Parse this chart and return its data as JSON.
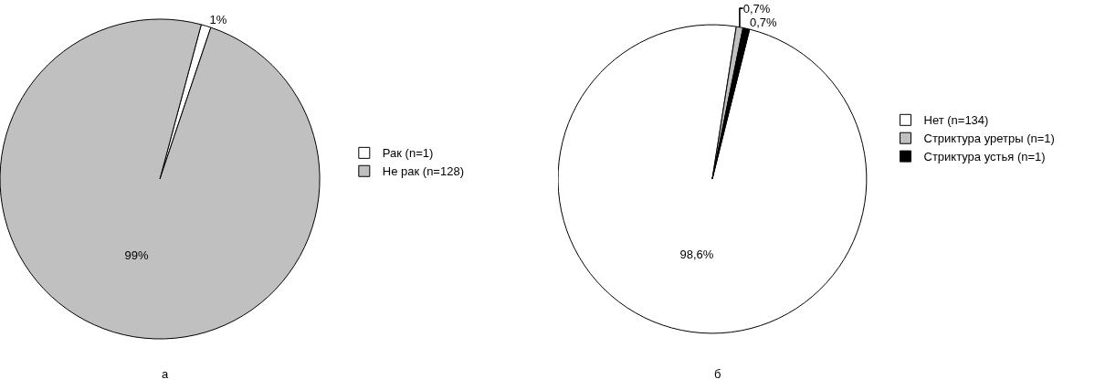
{
  "chart_data": [
    {
      "type": "pie",
      "categories": [
        "Рак (n=1)",
        "Не рак (n=128)"
      ],
      "values": [
        1,
        99
      ],
      "colors": [
        "#ffffff",
        "#c0c0c0"
      ],
      "value_labels": [
        "1%",
        "99%"
      ],
      "legend": "right",
      "annotations": [
        "а"
      ]
    },
    {
      "type": "pie",
      "categories": [
        "Нет (n=134)",
        "Стриктура уретры (n=1)",
        "Стриктура устья (n=1)"
      ],
      "values": [
        98.6,
        0.7,
        0.7
      ],
      "colors": [
        "#ffffff",
        "#c0c0c0",
        "#000000"
      ],
      "value_labels": [
        "98,6%",
        "0,7%",
        "0,7%"
      ],
      "legend": "right",
      "annotations": [
        "б"
      ]
    }
  ]
}
